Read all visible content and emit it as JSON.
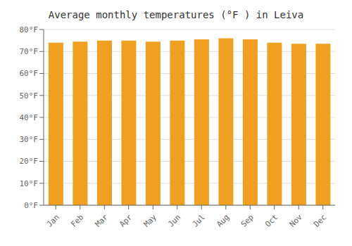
{
  "chart_data": {
    "type": "bar",
    "title": "Average monthly temperatures (°F ) in Leiva",
    "categories": [
      "Jan",
      "Feb",
      "Mar",
      "Apr",
      "May",
      "Jun",
      "Jul",
      "Aug",
      "Sep",
      "Oct",
      "Nov",
      "Dec"
    ],
    "values": [
      74,
      74.5,
      75,
      75,
      74.5,
      75,
      75.5,
      76,
      75.5,
      74,
      73.5,
      73.5
    ],
    "color": "#F0A020",
    "ylim": [
      0,
      80
    ],
    "yticks": [
      {
        "value": 0,
        "label": "0°F"
      },
      {
        "value": 10,
        "label": "10°F"
      },
      {
        "value": 20,
        "label": "20°F"
      },
      {
        "value": 30,
        "label": "30°F"
      },
      {
        "value": 40,
        "label": "40°F"
      },
      {
        "value": 50,
        "label": "50°F"
      },
      {
        "value": 60,
        "label": "60°F"
      },
      {
        "value": 70,
        "label": "70°F"
      },
      {
        "value": 80,
        "label": "80°F"
      }
    ],
    "grid": true
  }
}
